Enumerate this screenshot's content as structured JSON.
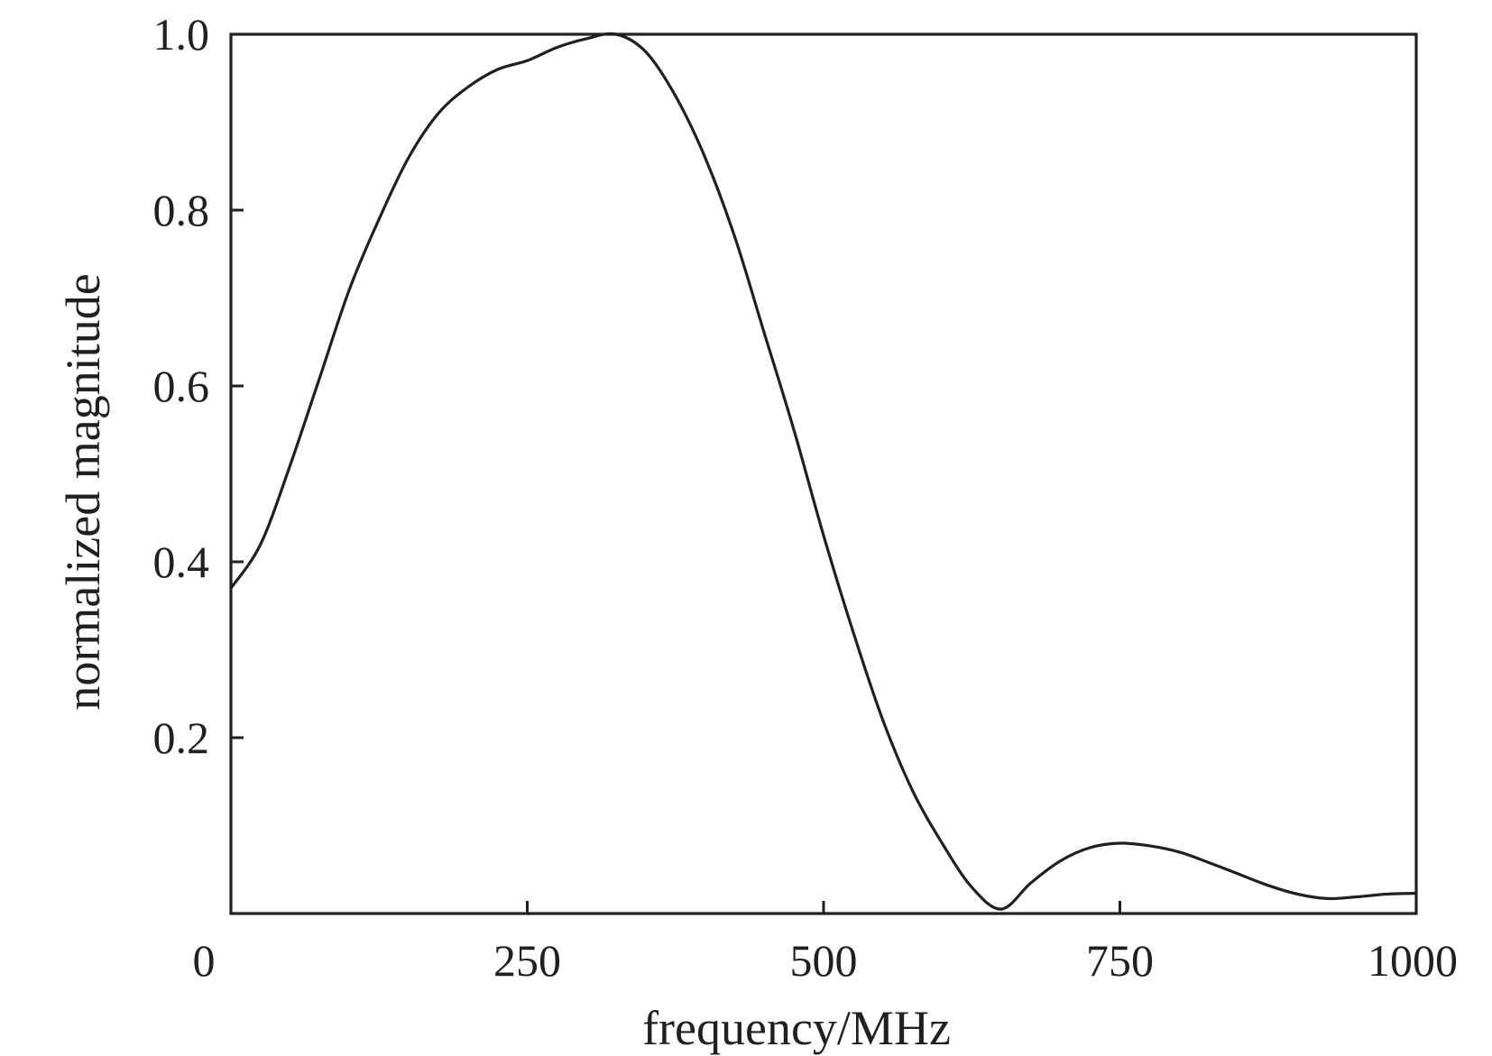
{
  "chart_data": {
    "type": "line",
    "title": "",
    "xlabel": "frequency/MHz",
    "ylabel": "normalized magnitude",
    "xlim": [
      0,
      1000
    ],
    "ylim": [
      0,
      1.0
    ],
    "x_ticks": [
      0,
      250,
      500,
      750,
      1000
    ],
    "x_tick_labels": [
      "0",
      "250",
      "500",
      "750",
      "1000"
    ],
    "y_ticks": [
      0.2,
      0.4,
      0.6,
      0.8,
      1.0
    ],
    "y_tick_labels": [
      "0.2",
      "0.4",
      "0.6",
      "0.8",
      "1.0"
    ],
    "grid": false,
    "legend": "none",
    "line_color": "#231f20",
    "series": [
      {
        "x": [
          0,
          25,
          50,
          75,
          100,
          125,
          150,
          175,
          200,
          225,
          250,
          275,
          300,
          325,
          350,
          375,
          400,
          425,
          450,
          475,
          500,
          525,
          550,
          575,
          600,
          625,
          650,
          675,
          700,
          725,
          750,
          775,
          800,
          825,
          850,
          875,
          900,
          925,
          950,
          975,
          1000
        ],
        "values": [
          0.37,
          0.42,
          0.51,
          0.61,
          0.71,
          0.79,
          0.86,
          0.91,
          0.94,
          0.96,
          0.97,
          0.985,
          0.995,
          1.0,
          0.98,
          0.93,
          0.86,
          0.77,
          0.66,
          0.55,
          0.43,
          0.32,
          0.22,
          0.14,
          0.08,
          0.03,
          0.005,
          0.035,
          0.06,
          0.075,
          0.08,
          0.077,
          0.07,
          0.058,
          0.045,
          0.032,
          0.022,
          0.017,
          0.019,
          0.022,
          0.023
        ]
      }
    ]
  }
}
